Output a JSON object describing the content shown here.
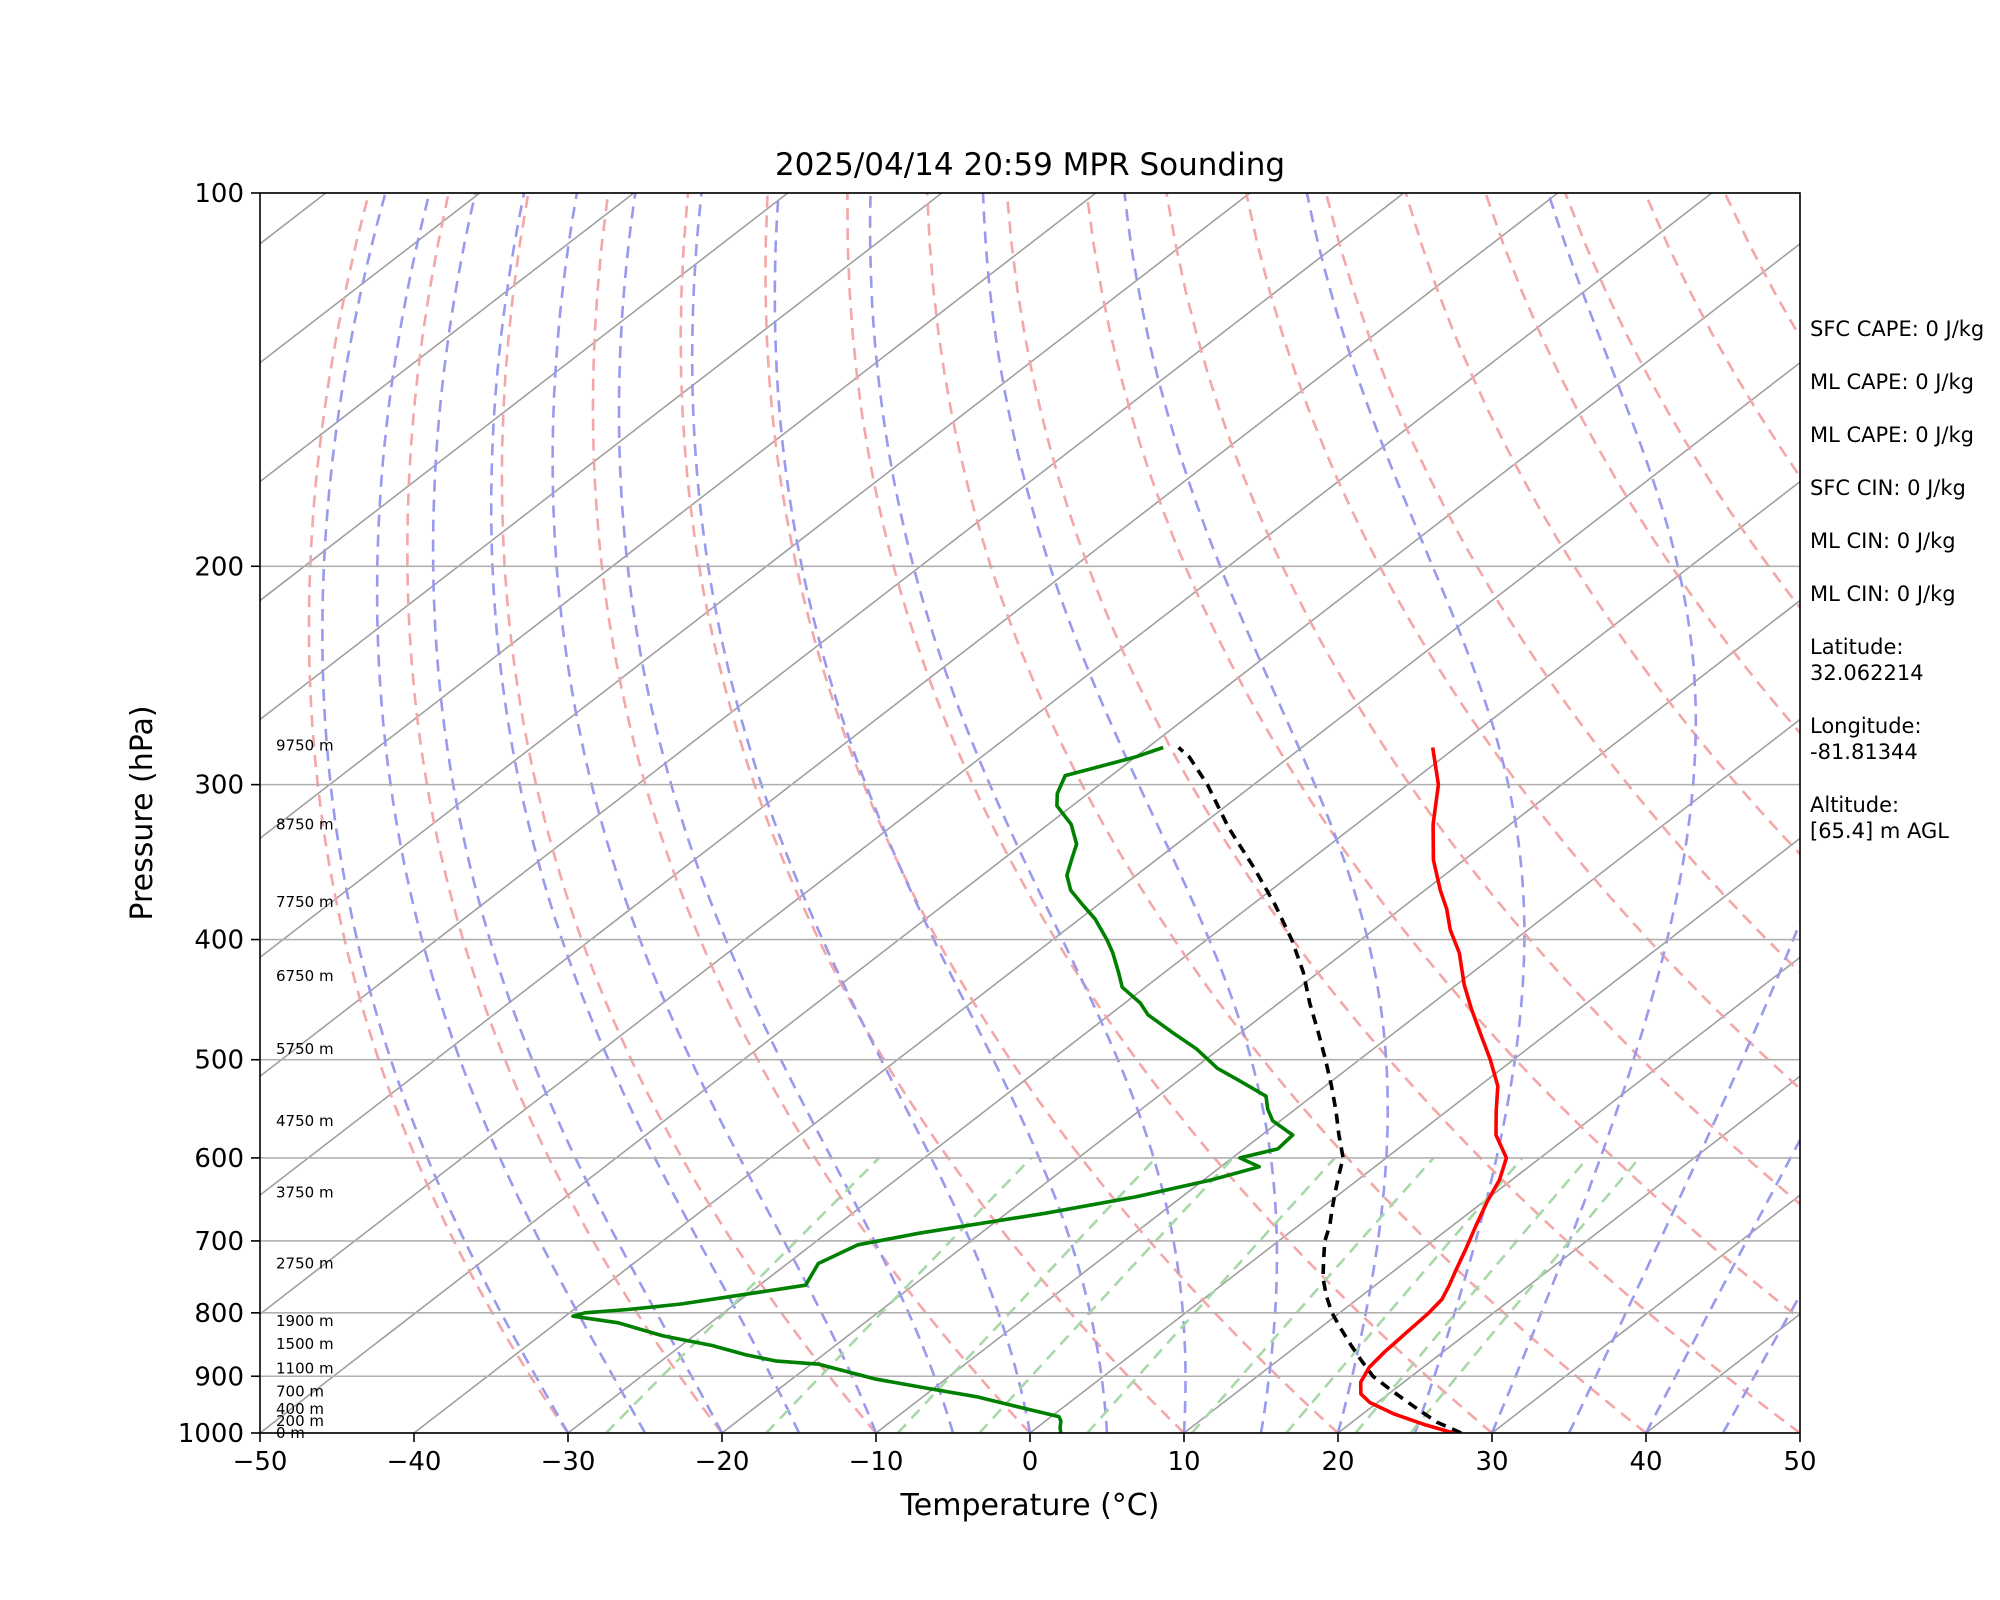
{
  "chart_data": {
    "type": "line",
    "subtype": "skew-t log-p",
    "title": "2025/04/14 20:59 MPR Sounding",
    "xlabel": "Temperature (°C)",
    "ylabel": "Pressure (hPa)",
    "xlim": [
      -50,
      50
    ],
    "ylim": [
      1000,
      100
    ],
    "y_scale": "log",
    "x_ticks": [
      "−50",
      "−40",
      "−30",
      "−20",
      "−10",
      "0",
      "10",
      "20",
      "30",
      "40",
      "50"
    ],
    "y_ticks": [
      "100",
      "200",
      "300",
      "400",
      "500",
      "600",
      "700",
      "800",
      "900",
      "1000"
    ],
    "grid": true,
    "background_lines": {
      "isotherms": "gray",
      "dry_adiabats": "red dashed",
      "moist_adiabats": "blue dashed",
      "mixing_ratio": "green dashed"
    },
    "colors": {
      "temperature": "#ff0000",
      "dewpoint": "#008000",
      "parcel": "#000000",
      "isotherm": "#a0a0a0",
      "dry_adiabat": "#f4a7a7",
      "moist_adiabat": "#9999ee",
      "mixing_ratio": "#a8d8a8"
    },
    "altitude_labels": [
      {
        "text": "0 m",
        "p": 1000
      },
      {
        "text": "200 m",
        "p": 978
      },
      {
        "text": "400 m",
        "p": 956
      },
      {
        "text": "700 m",
        "p": 926
      },
      {
        "text": "1100 m",
        "p": 887
      },
      {
        "text": "1500 m",
        "p": 848
      },
      {
        "text": "1900 m",
        "p": 812
      },
      {
        "text": "2750 m",
        "p": 730
      },
      {
        "text": "3750 m",
        "p": 640
      },
      {
        "text": "4750 m",
        "p": 560
      },
      {
        "text": "5750 m",
        "p": 490
      },
      {
        "text": "6750 m",
        "p": 428
      },
      {
        "text": "7750 m",
        "p": 373
      },
      {
        "text": "8750 m",
        "p": 323
      },
      {
        "text": "9750 m",
        "p": 279
      }
    ],
    "series": [
      {
        "name": "Temperature",
        "points": [
          [
            27.5,
            1000
          ],
          [
            25,
            985
          ],
          [
            22,
            965
          ],
          [
            19.5,
            945
          ],
          [
            18.2,
            930
          ],
          [
            17.2,
            910
          ],
          [
            16.5,
            885
          ],
          [
            16.2,
            860
          ],
          [
            16,
            830
          ],
          [
            15.8,
            800
          ],
          [
            15.5,
            780
          ],
          [
            14.8,
            760
          ],
          [
            14,
            740
          ],
          [
            12.8,
            710
          ],
          [
            11.5,
            680
          ],
          [
            10.2,
            650
          ],
          [
            9.2,
            625
          ],
          [
            7.8,
            600
          ],
          [
            5.2,
            575
          ],
          [
            3.2,
            550
          ],
          [
            1.2,
            525
          ],
          [
            -1.5,
            500
          ],
          [
            -4.5,
            475
          ],
          [
            -7,
            455
          ],
          [
            -9.5,
            435
          ],
          [
            -12.5,
            410
          ],
          [
            -15,
            393
          ],
          [
            -17,
            378
          ],
          [
            -19,
            365
          ],
          [
            -22,
            345
          ],
          [
            -25,
            323
          ],
          [
            -28,
            300
          ],
          [
            -31.5,
            280
          ]
        ]
      },
      {
        "name": "Dewpoint",
        "points": [
          [
            2,
            1000
          ],
          [
            1.5,
            990
          ],
          [
            1,
            978
          ],
          [
            0.5,
            970
          ],
          [
            -1.5,
            960
          ],
          [
            -3.5,
            950
          ],
          [
            -6.5,
            935
          ],
          [
            -10.5,
            920
          ],
          [
            -14.5,
            905
          ],
          [
            -17.5,
            890
          ],
          [
            -18.5,
            885
          ],
          [
            -19.5,
            880
          ],
          [
            -22.5,
            875
          ],
          [
            -25,
            865
          ],
          [
            -28,
            850
          ],
          [
            -32,
            835
          ],
          [
            -36,
            815
          ],
          [
            -39.5,
            805
          ],
          [
            -39,
            800
          ],
          [
            -36.5,
            795
          ],
          [
            -33.5,
            787
          ],
          [
            -27,
            760
          ],
          [
            -28,
            730
          ],
          [
            -27,
            705
          ],
          [
            -24,
            690
          ],
          [
            -17.5,
            665
          ],
          [
            -13,
            645
          ],
          [
            -9.5,
            625
          ],
          [
            -7.5,
            610
          ],
          [
            -9.5,
            600
          ],
          [
            -7.8,
            590
          ],
          [
            -8,
            575
          ],
          [
            -10.5,
            560
          ],
          [
            -11.8,
            548
          ],
          [
            -13,
            535
          ],
          [
            -16,
            520
          ],
          [
            -18.5,
            508
          ],
          [
            -21.5,
            490
          ],
          [
            -24.5,
            475
          ],
          [
            -27.5,
            460
          ],
          [
            -29,
            450
          ],
          [
            -31.5,
            437
          ],
          [
            -33,
            425
          ],
          [
            -35,
            410
          ],
          [
            -36.5,
            400
          ],
          [
            -39,
            385
          ],
          [
            -41,
            375
          ],
          [
            -43,
            365
          ],
          [
            -44.5,
            355
          ],
          [
            -45.5,
            345
          ],
          [
            -46.5,
            335
          ],
          [
            -48.5,
            323
          ],
          [
            -51,
            312
          ],
          [
            -52,
            305
          ],
          [
            -53,
            295
          ],
          [
            -51.5,
            290
          ],
          [
            -50,
            285
          ],
          [
            -49,
            280
          ]
        ]
      },
      {
        "name": "Parcel",
        "points": [
          [
            28,
            1000
          ],
          [
            25.5,
            980
          ],
          [
            23.5,
            960
          ],
          [
            21.5,
            940
          ],
          [
            19.5,
            920
          ],
          [
            17.5,
            900
          ],
          [
            15.5,
            875
          ],
          [
            13.5,
            850
          ],
          [
            11.5,
            825
          ],
          [
            9.5,
            800
          ],
          [
            7.7,
            775
          ],
          [
            6,
            750
          ],
          [
            4.5,
            725
          ],
          [
            3.6,
            710
          ],
          [
            3,
            700
          ],
          [
            2,
            680
          ],
          [
            0.8,
            660
          ],
          [
            -0.4,
            640
          ],
          [
            -1.6,
            620
          ],
          [
            -2.8,
            600
          ],
          [
            -5,
            575
          ],
          [
            -7.2,
            550
          ],
          [
            -9.6,
            525
          ],
          [
            -12.2,
            500
          ],
          [
            -15,
            475
          ],
          [
            -18,
            450
          ],
          [
            -21,
            425
          ],
          [
            -24.5,
            400
          ],
          [
            -28.5,
            375
          ],
          [
            -33,
            350
          ],
          [
            -38,
            325
          ],
          [
            -43,
            300
          ],
          [
            -46.5,
            285
          ],
          [
            -48,
            280
          ]
        ]
      }
    ]
  },
  "info_panel": {
    "items": [
      {
        "text": "SFC CAPE: 0 J/kg"
      },
      {
        "text": "ML CAPE: 0 J/kg"
      },
      {
        "text": "ML CAPE: 0 J/kg"
      },
      {
        "text": "SFC CIN: 0 J/kg"
      },
      {
        "text": "ML CIN: 0 J/kg"
      },
      {
        "text": "ML CIN: 0 J/kg"
      },
      {
        "text": "Latitude:",
        "sub": "32.062214"
      },
      {
        "text": "Longitude:",
        "sub": "-81.81344"
      },
      {
        "text": "Altitude:",
        "sub": "[65.4] m AGL"
      }
    ]
  }
}
